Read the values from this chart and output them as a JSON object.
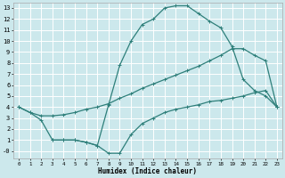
{
  "xlabel": "Humidex (Indice chaleur)",
  "bg_color": "#cce8ec",
  "grid_color": "#ffffff",
  "line_color": "#2e7f7a",
  "xlim": [
    -0.5,
    23.5
  ],
  "ylim": [
    -0.7,
    13.5
  ],
  "xticks": [
    0,
    1,
    2,
    3,
    4,
    5,
    6,
    7,
    8,
    9,
    10,
    11,
    12,
    13,
    14,
    15,
    16,
    17,
    18,
    19,
    20,
    21,
    22,
    23
  ],
  "yticks": [
    0,
    1,
    2,
    3,
    4,
    5,
    6,
    7,
    8,
    9,
    10,
    11,
    12,
    13
  ],
  "ytick_labels": [
    "-0",
    "1",
    "2",
    "3",
    "4",
    "5",
    "6",
    "7",
    "8",
    "9",
    "10",
    "11",
    "12",
    "13"
  ],
  "line1_x": [
    0,
    1,
    2,
    3,
    4,
    5,
    6,
    7,
    8,
    9,
    10,
    11,
    12,
    13,
    14,
    15,
    16,
    17,
    18,
    19,
    20,
    21,
    22,
    23
  ],
  "line1_y": [
    4.0,
    3.5,
    3.2,
    3.2,
    3.3,
    3.5,
    3.8,
    4.0,
    4.3,
    4.8,
    5.2,
    5.7,
    6.1,
    6.5,
    6.9,
    7.3,
    7.7,
    8.2,
    8.7,
    9.3,
    9.3,
    8.7,
    8.2,
    4.0
  ],
  "line2_x": [
    0,
    1,
    2,
    3,
    4,
    5,
    6,
    7,
    8,
    9,
    10,
    11,
    12,
    13,
    14,
    15,
    16,
    17,
    18,
    19,
    20,
    21,
    22,
    23
  ],
  "line2_y": [
    4.0,
    3.5,
    2.8,
    1.0,
    1.0,
    1.0,
    0.8,
    0.5,
    4.2,
    7.8,
    10.0,
    11.5,
    12.0,
    13.0,
    13.2,
    13.2,
    12.5,
    11.8,
    11.2,
    9.5,
    6.5,
    5.5,
    5.0,
    4.0
  ],
  "line3_x": [
    3,
    4,
    5,
    6,
    7,
    8,
    9,
    10,
    11,
    12,
    13,
    14,
    15,
    16,
    17,
    18,
    19,
    20,
    21,
    22,
    23
  ],
  "line3_y": [
    1.0,
    1.0,
    1.0,
    0.8,
    0.5,
    -0.2,
    -0.2,
    1.5,
    2.5,
    3.0,
    3.5,
    3.8,
    4.0,
    4.2,
    4.5,
    4.6,
    4.8,
    5.0,
    5.3,
    5.5,
    4.0
  ],
  "marker_size": 2.5,
  "line_width": 0.9
}
